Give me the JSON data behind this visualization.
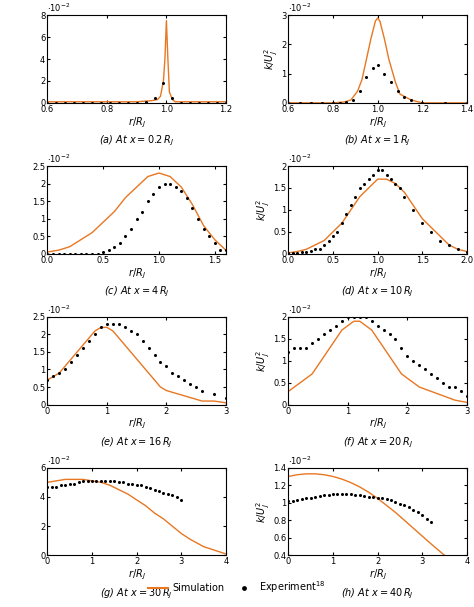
{
  "sim_color": "#E87722",
  "exp_color": "black",
  "subplots": [
    {
      "label": "(a) At $x = 0.2\\,R_J$",
      "xlim": [
        0.6,
        1.2
      ],
      "ylim": [
        0,
        0.008
      ],
      "yticks": [
        0,
        0.002,
        0.004,
        0.006,
        0.008
      ],
      "ytick_labels": [
        "0",
        "2",
        "4",
        "6",
        "8"
      ],
      "sim_x": [
        0.6,
        0.7,
        0.8,
        0.9,
        0.95,
        0.97,
        0.98,
        0.99,
        0.995,
        1.0,
        1.005,
        1.01,
        1.02,
        1.03,
        1.05,
        1.08,
        1.1,
        1.15,
        1.2
      ],
      "sim_y": [
        0.0001,
        0.0001,
        0.0001,
        0.0001,
        0.0002,
        0.0003,
        0.0006,
        0.002,
        0.004,
        0.0075,
        0.004,
        0.001,
        0.0003,
        0.0001,
        0.0001,
        0.0001,
        0.0001,
        0.0001,
        0.0001
      ],
      "exp_x": [
        0.6,
        0.63,
        0.66,
        0.69,
        0.72,
        0.75,
        0.78,
        0.81,
        0.84,
        0.87,
        0.9,
        0.93,
        0.96,
        0.99,
        1.02,
        1.05,
        1.08,
        1.11,
        1.14,
        1.17,
        1.2
      ],
      "exp_y": [
        0.0,
        0.0,
        0.0,
        0.0,
        0.0,
        0.0,
        0.0,
        0.0,
        0.0,
        0.0,
        0.0,
        0.0001,
        0.0004,
        0.0018,
        0.0004,
        0.0,
        0.0,
        0.0,
        0.0,
        0.0,
        0.0
      ],
      "has_ylabel": false,
      "xticks": [
        0.6,
        0.8,
        1.0,
        1.2
      ]
    },
    {
      "label": "(b) At $x = 1\\,R_J$",
      "xlim": [
        0.6,
        1.4
      ],
      "ylim": [
        0,
        0.03
      ],
      "yticks": [
        0,
        0.01,
        0.02,
        0.03
      ],
      "ytick_labels": [
        "0",
        "1",
        "2",
        "3"
      ],
      "sim_x": [
        0.6,
        0.7,
        0.8,
        0.85,
        0.88,
        0.91,
        0.93,
        0.95,
        0.97,
        0.99,
        1.0,
        1.01,
        1.03,
        1.05,
        1.08,
        1.1,
        1.15,
        1.2,
        1.3,
        1.4
      ],
      "sim_y": [
        0.0,
        0.0,
        0.0,
        0.0003,
        0.001,
        0.004,
        0.008,
        0.015,
        0.022,
        0.028,
        0.029,
        0.028,
        0.022,
        0.015,
        0.007,
        0.003,
        0.001,
        0.0,
        0.0,
        0.0
      ],
      "exp_x": [
        0.6,
        0.65,
        0.7,
        0.75,
        0.8,
        0.83,
        0.86,
        0.89,
        0.92,
        0.95,
        0.98,
        1.0,
        1.03,
        1.06,
        1.09,
        1.12,
        1.15,
        1.2,
        1.3,
        1.4
      ],
      "exp_y": [
        0.0,
        0.0,
        0.0,
        0.0,
        0.0,
        0.0,
        0.0003,
        0.001,
        0.004,
        0.009,
        0.012,
        0.013,
        0.01,
        0.007,
        0.004,
        0.002,
        0.001,
        0.0,
        0.0,
        0.0
      ],
      "has_ylabel": true,
      "xticks": [
        0.6,
        0.8,
        1.0,
        1.2,
        1.4
      ]
    },
    {
      "label": "(c) At $x = 4\\,R_J$",
      "xlim": [
        0,
        1.6
      ],
      "ylim": [
        0,
        0.025
      ],
      "yticks": [
        0,
        0.005,
        0.01,
        0.015,
        0.02,
        0.025
      ],
      "ytick_labels": [
        "0",
        "0.5",
        "1",
        "1.5",
        "2",
        "2.5"
      ],
      "sim_x": [
        0.0,
        0.1,
        0.2,
        0.3,
        0.4,
        0.5,
        0.6,
        0.7,
        0.8,
        0.9,
        1.0,
        1.1,
        1.2,
        1.3,
        1.4,
        1.5,
        1.6
      ],
      "sim_y": [
        0.0005,
        0.001,
        0.002,
        0.004,
        0.006,
        0.009,
        0.012,
        0.016,
        0.019,
        0.022,
        0.023,
        0.022,
        0.019,
        0.014,
        0.008,
        0.004,
        0.001
      ],
      "exp_x": [
        0.0,
        0.05,
        0.1,
        0.15,
        0.2,
        0.25,
        0.3,
        0.35,
        0.4,
        0.45,
        0.5,
        0.55,
        0.6,
        0.65,
        0.7,
        0.75,
        0.8,
        0.85,
        0.9,
        0.95,
        1.0,
        1.05,
        1.1,
        1.15,
        1.2,
        1.25,
        1.3,
        1.35,
        1.4,
        1.45,
        1.5,
        1.55,
        1.6
      ],
      "exp_y": [
        0.0,
        0.0,
        0.0,
        0.0,
        0.0,
        0.0,
        0.0,
        0.0,
        0.0,
        0.0,
        0.0005,
        0.001,
        0.002,
        0.003,
        0.005,
        0.007,
        0.01,
        0.012,
        0.015,
        0.017,
        0.019,
        0.02,
        0.02,
        0.019,
        0.018,
        0.016,
        0.013,
        0.01,
        0.007,
        0.005,
        0.003,
        0.001,
        0.001
      ],
      "has_ylabel": false,
      "xticks": [
        0,
        0.5,
        1.0,
        1.5
      ]
    },
    {
      "label": "(d) At $x = 10\\,R_J$",
      "xlim": [
        0,
        2.0
      ],
      "ylim": [
        0,
        0.02
      ],
      "yticks": [
        0,
        0.005,
        0.01,
        0.015,
        0.02
      ],
      "ytick_labels": [
        "0",
        "0.5",
        "1",
        "1.5",
        "2"
      ],
      "sim_x": [
        0.0,
        0.1,
        0.2,
        0.3,
        0.4,
        0.5,
        0.6,
        0.7,
        0.8,
        0.9,
        1.0,
        1.1,
        1.2,
        1.3,
        1.4,
        1.5,
        1.6,
        1.7,
        1.8,
        1.9,
        2.0
      ],
      "sim_y": [
        0.0002,
        0.0005,
        0.001,
        0.002,
        0.003,
        0.005,
        0.007,
        0.01,
        0.013,
        0.015,
        0.017,
        0.017,
        0.016,
        0.014,
        0.011,
        0.008,
        0.006,
        0.004,
        0.002,
        0.001,
        0.0005
      ],
      "exp_x": [
        0.0,
        0.05,
        0.1,
        0.15,
        0.2,
        0.25,
        0.3,
        0.35,
        0.4,
        0.45,
        0.5,
        0.55,
        0.6,
        0.65,
        0.7,
        0.75,
        0.8,
        0.85,
        0.9,
        0.95,
        1.0,
        1.05,
        1.1,
        1.15,
        1.2,
        1.25,
        1.3,
        1.4,
        1.5,
        1.6,
        1.7,
        1.8,
        1.9,
        2.0
      ],
      "exp_y": [
        0.0002,
        0.0002,
        0.0002,
        0.0003,
        0.0004,
        0.0006,
        0.001,
        0.001,
        0.002,
        0.003,
        0.004,
        0.005,
        0.007,
        0.009,
        0.011,
        0.013,
        0.015,
        0.016,
        0.017,
        0.018,
        0.019,
        0.019,
        0.018,
        0.017,
        0.016,
        0.015,
        0.013,
        0.01,
        0.007,
        0.005,
        0.003,
        0.002,
        0.001,
        0.0005
      ],
      "has_ylabel": true,
      "xticks": [
        0,
        0.5,
        1.0,
        1.5,
        2.0
      ]
    },
    {
      "label": "(e) At $x = 16\\,R_J$",
      "xlim": [
        0,
        3.0
      ],
      "ylim": [
        0,
        0.025
      ],
      "yticks": [
        0,
        0.005,
        0.01,
        0.015,
        0.02,
        0.025
      ],
      "ytick_labels": [
        "0",
        "0.5",
        "1",
        "1.5",
        "2",
        "2.5"
      ],
      "sim_x": [
        0.0,
        0.1,
        0.2,
        0.3,
        0.4,
        0.5,
        0.6,
        0.7,
        0.8,
        0.9,
        1.0,
        1.1,
        1.2,
        1.3,
        1.4,
        1.5,
        1.6,
        1.7,
        1.8,
        1.9,
        2.0,
        2.2,
        2.4,
        2.6,
        2.8,
        3.0
      ],
      "sim_y": [
        0.007,
        0.008,
        0.009,
        0.011,
        0.013,
        0.015,
        0.017,
        0.019,
        0.021,
        0.022,
        0.022,
        0.021,
        0.019,
        0.017,
        0.015,
        0.013,
        0.011,
        0.009,
        0.007,
        0.005,
        0.004,
        0.003,
        0.002,
        0.001,
        0.001,
        0.0005
      ],
      "exp_x": [
        0.0,
        0.1,
        0.2,
        0.3,
        0.4,
        0.5,
        0.6,
        0.7,
        0.8,
        0.9,
        1.0,
        1.1,
        1.2,
        1.3,
        1.4,
        1.5,
        1.6,
        1.7,
        1.8,
        1.9,
        2.0,
        2.1,
        2.2,
        2.3,
        2.4,
        2.5,
        2.6,
        2.8,
        3.0
      ],
      "exp_y": [
        0.007,
        0.008,
        0.009,
        0.01,
        0.012,
        0.014,
        0.016,
        0.018,
        0.02,
        0.022,
        0.023,
        0.023,
        0.023,
        0.022,
        0.021,
        0.02,
        0.018,
        0.016,
        0.014,
        0.012,
        0.011,
        0.009,
        0.008,
        0.007,
        0.006,
        0.005,
        0.004,
        0.003,
        0.002
      ],
      "has_ylabel": false,
      "xticks": [
        0,
        1,
        2,
        3
      ]
    },
    {
      "label": "(f) At $x = 20\\,R_J$",
      "xlim": [
        0,
        3.0
      ],
      "ylim": [
        0,
        0.02
      ],
      "yticks": [
        0,
        0.005,
        0.01,
        0.015,
        0.02
      ],
      "ytick_labels": [
        "0",
        "0.5",
        "1",
        "1.5",
        "2"
      ],
      "sim_x": [
        0.0,
        0.1,
        0.2,
        0.3,
        0.4,
        0.5,
        0.6,
        0.7,
        0.8,
        0.9,
        1.0,
        1.1,
        1.2,
        1.3,
        1.4,
        1.5,
        1.6,
        1.7,
        1.8,
        1.9,
        2.0,
        2.2,
        2.4,
        2.6,
        2.8,
        3.0
      ],
      "sim_y": [
        0.003,
        0.004,
        0.005,
        0.006,
        0.007,
        0.009,
        0.011,
        0.013,
        0.015,
        0.017,
        0.018,
        0.019,
        0.019,
        0.018,
        0.017,
        0.015,
        0.013,
        0.011,
        0.009,
        0.007,
        0.006,
        0.004,
        0.003,
        0.002,
        0.001,
        0.0005
      ],
      "exp_x": [
        0.0,
        0.1,
        0.2,
        0.3,
        0.4,
        0.5,
        0.6,
        0.7,
        0.8,
        0.9,
        1.0,
        1.1,
        1.2,
        1.3,
        1.4,
        1.5,
        1.6,
        1.7,
        1.8,
        1.9,
        2.0,
        2.1,
        2.2,
        2.3,
        2.4,
        2.5,
        2.6,
        2.7,
        2.8,
        2.9,
        3.0
      ],
      "exp_y": [
        0.012,
        0.013,
        0.013,
        0.013,
        0.014,
        0.015,
        0.016,
        0.017,
        0.018,
        0.019,
        0.02,
        0.02,
        0.02,
        0.02,
        0.019,
        0.018,
        0.017,
        0.016,
        0.015,
        0.013,
        0.011,
        0.01,
        0.009,
        0.008,
        0.007,
        0.006,
        0.005,
        0.004,
        0.004,
        0.003,
        0.002
      ],
      "has_ylabel": true,
      "xticks": [
        0,
        1,
        2,
        3
      ]
    },
    {
      "label": "(g) At $x = 30\\,R_J$",
      "xlim": [
        0,
        4.0
      ],
      "ylim": [
        0.0,
        0.006
      ],
      "yticks": [
        0.0,
        0.002,
        0.004,
        0.006
      ],
      "ytick_labels": [
        "0",
        "2",
        "4",
        "6"
      ],
      "sim_x": [
        0.0,
        0.2,
        0.4,
        0.6,
        0.8,
        1.0,
        1.2,
        1.4,
        1.6,
        1.8,
        2.0,
        2.2,
        2.4,
        2.6,
        2.8,
        3.0,
        3.2,
        3.5,
        4.0
      ],
      "sim_y": [
        0.005,
        0.0051,
        0.0052,
        0.0052,
        0.0052,
        0.0051,
        0.005,
        0.0048,
        0.0045,
        0.0042,
        0.0038,
        0.0034,
        0.0029,
        0.0025,
        0.002,
        0.0015,
        0.0011,
        0.0006,
        0.0001
      ],
      "exp_x": [
        0.0,
        0.1,
        0.2,
        0.3,
        0.4,
        0.5,
        0.6,
        0.7,
        0.8,
        0.9,
        1.0,
        1.1,
        1.2,
        1.3,
        1.4,
        1.5,
        1.6,
        1.7,
        1.8,
        1.9,
        2.0,
        2.1,
        2.2,
        2.3,
        2.4,
        2.5,
        2.6,
        2.7,
        2.8,
        2.9,
        3.0
      ],
      "exp_y": [
        0.0047,
        0.0047,
        0.0047,
        0.0048,
        0.0048,
        0.0049,
        0.0049,
        0.005,
        0.0051,
        0.0051,
        0.0051,
        0.0051,
        0.0051,
        0.0051,
        0.0051,
        0.0051,
        0.005,
        0.005,
        0.0049,
        0.0049,
        0.0048,
        0.0048,
        0.0047,
        0.0046,
        0.0045,
        0.0044,
        0.0043,
        0.0042,
        0.0041,
        0.004,
        0.0038
      ],
      "has_ylabel": false,
      "xticks": [
        0,
        1,
        2,
        3,
        4
      ]
    },
    {
      "label": "(h) At $x = 40\\,R_J$",
      "xlim": [
        0,
        4.0
      ],
      "ylim": [
        0.004,
        0.014
      ],
      "yticks": [
        0.004,
        0.006,
        0.008,
        0.01,
        0.012,
        0.014
      ],
      "ytick_labels": [
        "0.4",
        "0.6",
        "0.8",
        "1",
        "1.2",
        "1.4"
      ],
      "sim_x": [
        0.0,
        0.2,
        0.4,
        0.6,
        0.8,
        1.0,
        1.2,
        1.4,
        1.6,
        1.8,
        2.0,
        2.2,
        2.4,
        2.6,
        2.8,
        3.0,
        3.2,
        3.5,
        4.0
      ],
      "sim_y": [
        0.013,
        0.0132,
        0.0133,
        0.0133,
        0.0132,
        0.013,
        0.0127,
        0.0123,
        0.0118,
        0.0112,
        0.0105,
        0.0097,
        0.0089,
        0.008,
        0.0071,
        0.0062,
        0.0053,
        0.004,
        0.002
      ],
      "exp_x": [
        0.0,
        0.1,
        0.2,
        0.3,
        0.4,
        0.5,
        0.6,
        0.7,
        0.8,
        0.9,
        1.0,
        1.1,
        1.2,
        1.3,
        1.4,
        1.5,
        1.6,
        1.7,
        1.8,
        1.9,
        2.0,
        2.1,
        2.2,
        2.3,
        2.4,
        2.5,
        2.6,
        2.7,
        2.8,
        2.9,
        3.0,
        3.1,
        3.2
      ],
      "exp_y": [
        0.0102,
        0.0102,
        0.0103,
        0.0104,
        0.0105,
        0.0106,
        0.0107,
        0.0108,
        0.0109,
        0.0109,
        0.011,
        0.011,
        0.011,
        0.011,
        0.011,
        0.0109,
        0.0109,
        0.0108,
        0.0107,
        0.0107,
        0.0106,
        0.0105,
        0.0104,
        0.0103,
        0.0101,
        0.0099,
        0.0097,
        0.0095,
        0.0092,
        0.0089,
        0.0086,
        0.0082,
        0.0078
      ],
      "has_ylabel": true,
      "xticks": [
        0,
        1,
        2,
        3,
        4
      ]
    }
  ],
  "legend": {
    "sim_label": "Simulation",
    "exp_label": "Experiment$^{18}$"
  }
}
